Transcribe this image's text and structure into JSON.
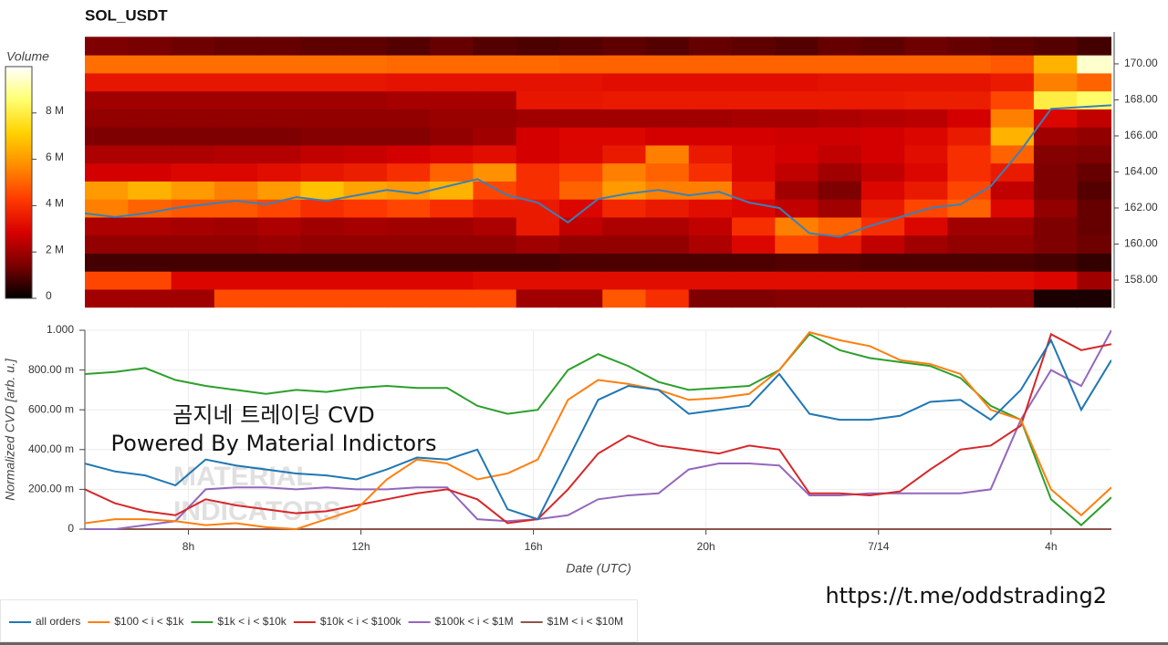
{
  "chart_data": [
    {
      "type": "heatmap",
      "title": "SOL_USDT",
      "xlim": [
        5.6,
        29.4
      ],
      "ylim": [
        156.43,
        171.77
      ],
      "xbins": [
        5.6,
        6.6,
        7.6,
        8.6,
        9.6,
        10.6,
        11.6,
        12.6,
        13.6,
        14.6,
        15.6,
        16.6,
        17.6,
        18.6,
        19.6,
        20.6,
        21.6,
        22.6,
        23.6,
        24.6,
        25.6,
        26.6,
        27.6,
        28.6,
        29.4
      ],
      "ybins": [
        156.5,
        157.5,
        158.5,
        159.5,
        160.5,
        161.5,
        162.5,
        163.5,
        164.5,
        165.5,
        166.5,
        167.5,
        168.5,
        169.5,
        170.5,
        171.5
      ],
      "values": [
        [
          2.0,
          2.0,
          2.0,
          4.6,
          4.6,
          4.6,
          4.6,
          4.6,
          4.6,
          4.6,
          2.0,
          2.0,
          4.8,
          4.0,
          1.5,
          1.5,
          1.6,
          1.6,
          1.6,
          1.6,
          1.6,
          1.6,
          0.3,
          0.3
        ],
        [
          4.5,
          4.5,
          3.0,
          3.0,
          3.0,
          3.0,
          3.0,
          3.0,
          3.0,
          3.2,
          3.2,
          3.2,
          3.2,
          3.2,
          3.2,
          3.2,
          3.2,
          3.2,
          3.2,
          3.2,
          3.2,
          3.2,
          3.0,
          2.0
        ],
        [
          0.8,
          0.8,
          0.8,
          0.8,
          0.8,
          0.8,
          0.8,
          0.8,
          0.8,
          0.8,
          0.8,
          0.9,
          0.9,
          0.9,
          0.9,
          0.9,
          1.0,
          1.0,
          0.9,
          0.9,
          0.9,
          0.9,
          0.8,
          0.6
        ],
        [
          1.8,
          1.8,
          1.8,
          1.8,
          1.9,
          1.8,
          1.8,
          1.8,
          1.8,
          1.8,
          2.0,
          1.8,
          1.8,
          1.8,
          2.2,
          3.0,
          4.5,
          3.5,
          2.5,
          2.0,
          1.8,
          1.8,
          1.5,
          1.3
        ],
        [
          2.2,
          2.2,
          2.1,
          2.0,
          2.2,
          2.0,
          2.1,
          2.0,
          2.0,
          2.2,
          3.5,
          2.5,
          2.2,
          2.2,
          2.5,
          4.0,
          5.5,
          5.0,
          4.0,
          3.0,
          2.0,
          2.0,
          1.5,
          1.2
        ],
        [
          5.5,
          5.0,
          4.8,
          4.8,
          4.5,
          4.0,
          4.2,
          4.5,
          4.0,
          3.5,
          3.5,
          3.0,
          3.8,
          3.5,
          3.2,
          3.0,
          2.5,
          2.0,
          3.5,
          4.5,
          5.0,
          3.0,
          1.8,
          1.2
        ],
        [
          6.0,
          6.5,
          6.0,
          5.5,
          6.0,
          6.8,
          6.2,
          6.0,
          6.5,
          4.5,
          4.0,
          5.0,
          6.0,
          5.5,
          5.5,
          3.5,
          2.0,
          1.5,
          3.0,
          3.5,
          4.5,
          2.5,
          1.5,
          1.0
        ],
        [
          2.8,
          2.8,
          3.0,
          3.0,
          3.2,
          3.4,
          3.6,
          4.0,
          5.0,
          5.8,
          4.0,
          4.5,
          5.5,
          5.0,
          4.0,
          3.0,
          2.5,
          2.0,
          2.5,
          3.0,
          4.0,
          3.5,
          1.5,
          1.2
        ],
        [
          2.2,
          2.2,
          2.2,
          2.3,
          2.3,
          2.5,
          2.6,
          2.8,
          3.0,
          3.2,
          2.8,
          3.0,
          3.5,
          5.5,
          3.5,
          3.0,
          2.8,
          2.5,
          2.8,
          3.2,
          4.0,
          5.0,
          1.6,
          1.5
        ],
        [
          1.5,
          1.5,
          1.5,
          1.5,
          1.5,
          1.6,
          1.6,
          1.6,
          1.8,
          2.0,
          2.8,
          3.0,
          3.0,
          2.8,
          2.8,
          2.8,
          2.7,
          2.7,
          2.8,
          3.0,
          3.5,
          6.5,
          2.0,
          1.8
        ],
        [
          1.8,
          1.8,
          1.8,
          1.8,
          1.8,
          1.8,
          1.8,
          1.8,
          1.9,
          1.9,
          2.0,
          2.0,
          2.0,
          2.0,
          2.0,
          2.1,
          2.1,
          2.2,
          2.3,
          2.4,
          2.8,
          5.5,
          3.0,
          2.5
        ],
        [
          2.0,
          2.0,
          2.0,
          2.0,
          2.0,
          2.0,
          2.0,
          2.1,
          2.1,
          2.1,
          3.4,
          3.4,
          3.5,
          3.5,
          3.5,
          3.5,
          3.5,
          3.5,
          3.5,
          3.6,
          3.6,
          4.5,
          8.0,
          8.5
        ],
        [
          3.4,
          3.4,
          3.4,
          3.4,
          3.4,
          3.4,
          3.4,
          3.3,
          3.3,
          3.3,
          3.3,
          3.3,
          3.2,
          3.2,
          3.2,
          3.2,
          3.2,
          3.3,
          3.3,
          3.3,
          3.3,
          3.5,
          5.5,
          5.0
        ],
        [
          5.2,
          5.2,
          5.2,
          5.2,
          5.2,
          5.2,
          5.2,
          5.1,
          5.1,
          5.1,
          5.1,
          5.0,
          5.0,
          5.0,
          5.0,
          5.0,
          5.0,
          5.0,
          5.0,
          5.0,
          5.0,
          4.8,
          6.5,
          9.5
        ],
        [
          1.5,
          1.4,
          1.3,
          1.2,
          1.2,
          1.1,
          1.1,
          1.0,
          1.2,
          1.0,
          0.9,
          1.0,
          1.1,
          1.0,
          1.2,
          1.1,
          1.0,
          1.2,
          1.1,
          1.3,
          1.2,
          1.1,
          1.0,
          0.8
        ]
      ],
      "yticks": [
        {
          "value": 158,
          "label": "158.00"
        },
        {
          "value": 160,
          "label": "160.00"
        },
        {
          "value": 162,
          "label": "162.00"
        },
        {
          "value": 164,
          "label": "164.00"
        },
        {
          "value": 166,
          "label": "166.00"
        },
        {
          "value": 168,
          "label": "168.00"
        },
        {
          "value": 170,
          "label": "170.00"
        }
      ],
      "line": {
        "color": "#3b80b8",
        "x": [
          5.6,
          6.3,
          7.0,
          7.7,
          8.4,
          9.1,
          9.8,
          10.5,
          11.2,
          11.9,
          12.6,
          13.3,
          14.0,
          14.7,
          15.4,
          16.1,
          16.8,
          17.5,
          18.2,
          18.9,
          19.6,
          20.3,
          21.0,
          21.7,
          22.4,
          23.1,
          23.8,
          24.5,
          25.2,
          25.9,
          26.6,
          27.3,
          28.0,
          28.7,
          29.4
        ],
        "values": [
          161.7,
          161.5,
          161.7,
          162.0,
          162.2,
          162.4,
          162.2,
          162.6,
          162.4,
          162.7,
          163.0,
          162.8,
          163.2,
          163.6,
          162.7,
          162.3,
          161.2,
          162.5,
          162.8,
          163.0,
          162.7,
          162.9,
          162.3,
          162.0,
          160.6,
          160.4,
          161.0,
          161.5,
          162.0,
          162.2,
          163.2,
          165.2,
          167.5,
          167.6,
          167.7
        ]
      },
      "colorbar": {
        "label": "Volume",
        "lim": [
          0,
          10
        ],
        "ticks": [
          0,
          {
            "value": 2,
            "label": "2 M"
          },
          {
            "value": 4,
            "label": "4 M"
          },
          {
            "value": 6,
            "label": "6 M"
          },
          {
            "value": 8,
            "label": "8 M"
          }
        ],
        "colormap": [
          "#000000",
          "#7a0000",
          "#d80000",
          "#ff3a00",
          "#ff8c00",
          "#ffd200",
          "#ffff70",
          "#ffffff"
        ]
      }
    },
    {
      "type": "line",
      "xlabel": "Date (UTC)",
      "ylabel": "Normalized CVD [arb. u.]",
      "xlim": [
        5.6,
        29.4
      ],
      "ylim": [
        0,
        1
      ],
      "xticks": [
        {
          "value": 8,
          "label": "8h"
        },
        {
          "value": 12,
          "label": "12h"
        },
        {
          "value": 16,
          "label": "16h"
        },
        {
          "value": 20,
          "label": "20h"
        },
        {
          "value": 24,
          "label": "7/14"
        },
        {
          "value": 28,
          "label": "4h"
        }
      ],
      "yticks": [
        0,
        {
          "value": 0.2,
          "label": "200.00 m"
        },
        {
          "value": 0.4,
          "label": "400.00 m"
        },
        {
          "value": 0.6,
          "label": "600.00 m"
        },
        {
          "value": 0.8,
          "label": "800.00 m"
        },
        {
          "value": 1,
          "label": "1.000"
        }
      ],
      "grid": true,
      "legend": "bottom-left",
      "x": [
        5.6,
        6.3,
        7.0,
        7.7,
        8.4,
        9.1,
        9.8,
        10.5,
        11.2,
        11.9,
        12.6,
        13.3,
        14.0,
        14.7,
        15.4,
        16.1,
        16.8,
        17.5,
        18.2,
        18.9,
        19.6,
        20.3,
        21.0,
        21.7,
        22.4,
        23.1,
        23.8,
        24.5,
        25.2,
        25.9,
        26.6,
        27.3,
        28.0,
        28.7,
        29.4
      ],
      "series": [
        {
          "name": "all orders",
          "color": "#1f77b4",
          "values": [
            0.33,
            0.29,
            0.27,
            0.22,
            0.35,
            0.32,
            0.3,
            0.28,
            0.27,
            0.25,
            0.3,
            0.36,
            0.35,
            0.4,
            0.1,
            0.05,
            0.35,
            0.65,
            0.72,
            0.7,
            0.58,
            0.6,
            0.62,
            0.78,
            0.58,
            0.55,
            0.55,
            0.57,
            0.64,
            0.65,
            0.55,
            0.7,
            0.95,
            0.6,
            0.85
          ]
        },
        {
          "name": "$100 < i < $1k",
          "color": "#ff7f0e",
          "values": [
            0.03,
            0.05,
            0.05,
            0.04,
            0.02,
            0.03,
            0.01,
            0.0,
            0.05,
            0.1,
            0.25,
            0.35,
            0.33,
            0.25,
            0.28,
            0.35,
            0.65,
            0.75,
            0.73,
            0.7,
            0.65,
            0.66,
            0.68,
            0.8,
            0.99,
            0.95,
            0.92,
            0.85,
            0.83,
            0.78,
            0.6,
            0.55,
            0.2,
            0.07,
            0.21
          ]
        },
        {
          "name": "$1k < i < $10k",
          "color": "#2ca02c",
          "values": [
            0.78,
            0.79,
            0.81,
            0.75,
            0.72,
            0.7,
            0.68,
            0.7,
            0.69,
            0.71,
            0.72,
            0.71,
            0.71,
            0.62,
            0.58,
            0.6,
            0.8,
            0.88,
            0.82,
            0.74,
            0.7,
            0.71,
            0.72,
            0.8,
            0.98,
            0.9,
            0.86,
            0.84,
            0.82,
            0.76,
            0.62,
            0.55,
            0.15,
            0.02,
            0.16
          ]
        },
        {
          "name": "$10k < i < $100k",
          "color": "#d62728",
          "values": [
            0.2,
            0.13,
            0.09,
            0.07,
            0.15,
            0.12,
            0.1,
            0.08,
            0.09,
            0.12,
            0.15,
            0.18,
            0.2,
            0.15,
            0.03,
            0.05,
            0.2,
            0.38,
            0.47,
            0.42,
            0.4,
            0.38,
            0.42,
            0.4,
            0.18,
            0.18,
            0.17,
            0.19,
            0.3,
            0.4,
            0.42,
            0.52,
            0.98,
            0.9,
            0.93
          ]
        },
        {
          "name": "$100k < i < $1M",
          "color": "#9467bd",
          "values": [
            0.0,
            0.0,
            0.02,
            0.04,
            0.2,
            0.21,
            0.21,
            0.2,
            0.21,
            0.2,
            0.2,
            0.21,
            0.21,
            0.05,
            0.04,
            0.05,
            0.07,
            0.15,
            0.17,
            0.18,
            0.3,
            0.33,
            0.33,
            0.32,
            0.17,
            0.17,
            0.18,
            0.18,
            0.18,
            0.18,
            0.2,
            0.55,
            0.8,
            0.72,
            1.0
          ]
        },
        {
          "name": "$1M < i < $10M",
          "color": "#8c564b",
          "values": [
            0,
            0,
            0,
            0,
            0,
            0,
            0,
            0,
            0,
            0,
            0,
            0,
            0,
            0,
            0,
            0,
            0,
            0,
            0,
            0,
            0,
            0,
            0,
            0,
            0,
            0,
            0,
            0,
            0,
            0,
            0,
            0,
            0,
            0,
            0
          ]
        }
      ],
      "annotations": [
        "곰지네 트레이딩 CVD",
        "Powered By Material Indictors"
      ],
      "watermark": [
        "MATERIAL",
        "INDICATORS"
      ]
    }
  ],
  "footer": "https://t.me/oddstrading2"
}
